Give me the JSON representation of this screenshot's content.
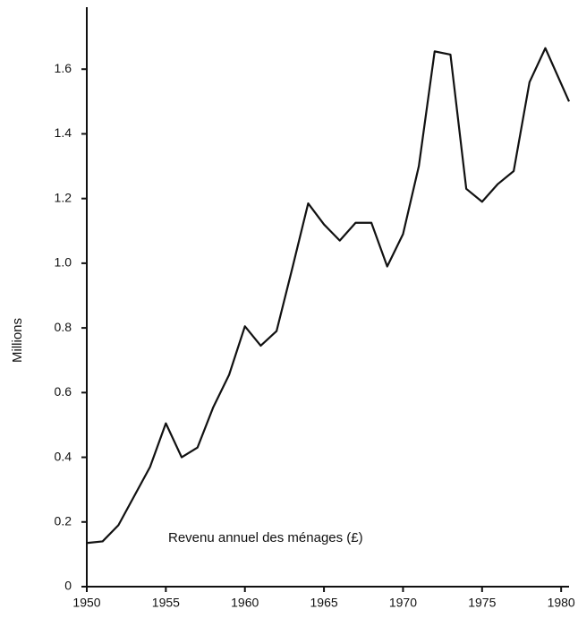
{
  "chart_data": {
    "type": "line",
    "annotation": "Revenu annuel des ménages (£)",
    "y_label": "Millions",
    "x": [
      1950,
      1951,
      1952,
      1953,
      1954,
      1955,
      1956,
      1957,
      1958,
      1959,
      1960,
      1961,
      1962,
      1963,
      1964,
      1965,
      1966,
      1967,
      1968,
      1969,
      1970,
      1971,
      1972,
      1973,
      1974,
      1975,
      1976,
      1977,
      1978,
      1979,
      1980.5
    ],
    "values": [
      0.135,
      0.14,
      0.19,
      0.28,
      0.37,
      0.505,
      0.4,
      0.43,
      0.555,
      0.655,
      0.805,
      0.745,
      0.79,
      0.985,
      1.185,
      1.12,
      1.07,
      1.125,
      1.125,
      0.99,
      1.09,
      1.3,
      1.655,
      1.645,
      1.23,
      1.19,
      1.245,
      1.285,
      1.56,
      1.665,
      1.5
    ],
    "color": "#111111",
    "xlim": [
      1950,
      1980.5
    ],
    "xticks": [
      1950,
      1955,
      1960,
      1965,
      1970,
      1975,
      1980
    ],
    "ylim": [
      0,
      1.8
    ],
    "yticks": [
      0,
      0.2,
      0.4,
      0.6,
      0.8,
      {
        "value": 1,
        "label": "1.0"
      },
      1.2,
      1.4,
      1.6
    ]
  }
}
